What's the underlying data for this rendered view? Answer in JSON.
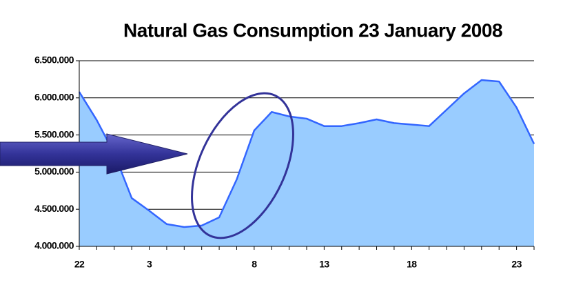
{
  "chart_data": {
    "type": "area",
    "title": "Natural Gas Consumption 23 January 2008",
    "categories": [
      "22",
      null,
      null,
      null,
      "3",
      null,
      null,
      null,
      null,
      null,
      "8",
      null,
      null,
      null,
      "13",
      null,
      null,
      null,
      null,
      "18",
      null,
      null,
      null,
      null,
      null,
      "23",
      null
    ],
    "series": [
      {
        "name": null,
        "color": "#3366ff",
        "fill": "#99ccff",
        "values": [
          6080000,
          5700000,
          5250000,
          4650000,
          4480000,
          4300000,
          4260000,
          4280000,
          4390000,
          4900000,
          5560000,
          5810000,
          5750000,
          5720000,
          5620000,
          5620000,
          5660000,
          5710000,
          5660000,
          5640000,
          5620000,
          5840000,
          6060000,
          6240000,
          6220000,
          5870000,
          5380000
        ]
      }
    ],
    "ylim": [
      4000000,
      6500000
    ],
    "yticks": [
      {
        "value": 4000000,
        "label": "4.000.000"
      },
      {
        "value": 4500000,
        "label": "4.500.000"
      },
      {
        "value": 5000000,
        "label": "5.000.000"
      },
      {
        "value": 5500000,
        "label": "5.500.000"
      },
      {
        "value": 6000000,
        "label": "6.000.000"
      },
      {
        "value": 6500000,
        "label": "6.500.000"
      }
    ],
    "grid": true
  }
}
